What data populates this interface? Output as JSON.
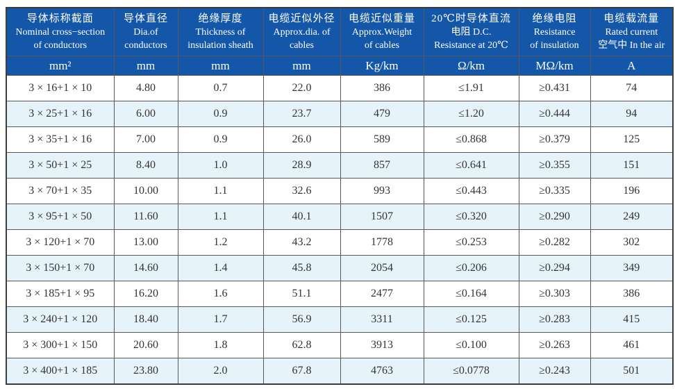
{
  "page": {
    "background": "#ffffff"
  },
  "table": {
    "colors": {
      "header_bg": "#1457A9",
      "header_text": "#ffffff",
      "row_bg": "#ffffff",
      "row_alt_bg": "#E7F3FB",
      "border": "#585858",
      "data_text": "#333333"
    },
    "columns": [
      {
        "lines": [
          "导体标称截面",
          "Nominal cross−section",
          "of conductors"
        ],
        "unit": "mm²"
      },
      {
        "lines": [
          "导体直径",
          "Dia.of",
          "conductors"
        ],
        "unit": "mm"
      },
      {
        "lines": [
          "绝缘厚度",
          "Thickness of",
          "insulation sheath"
        ],
        "unit": "mm"
      },
      {
        "lines": [
          "电缆近似外径",
          "Approx.dia. of",
          "cables"
        ],
        "unit": "mm"
      },
      {
        "lines": [
          "电缆近似重量",
          "Approx.Weight",
          "of cables"
        ],
        "unit": "Kg/km"
      },
      {
        "lines": [
          "20℃时导体直流",
          "电阻 D.C.",
          "Resistance at 20℃"
        ],
        "unit": "Ω/km"
      },
      {
        "lines": [
          "绝缘电阻",
          "Resistance",
          "of insulation"
        ],
        "unit": "MΩ/km"
      },
      {
        "lines": [
          "电缆载流量",
          "Rated current",
          "空气中 In the air"
        ],
        "unit": "A"
      }
    ],
    "rows": [
      [
        "3 × 16+1 × 10",
        "4.80",
        "0.7",
        "22.0",
        "386",
        "≤1.91",
        "≥0.431",
        "74"
      ],
      [
        "3 × 25+1 × 16",
        "6.00",
        "0.9",
        "23.7",
        "479",
        "≤1.20",
        "≥0.444",
        "94"
      ],
      [
        "3 × 35+1 × 16",
        "7.00",
        "0.9",
        "26.0",
        "589",
        "≤0.868",
        "≥0.379",
        "125"
      ],
      [
        "3 × 50+1 × 25",
        "8.40",
        "1.0",
        "28.9",
        "857",
        "≤0.641",
        "≥0.355",
        "151"
      ],
      [
        "3 × 70+1 × 35",
        "10.00",
        "1.1",
        "32.6",
        "993",
        "≤0.443",
        "≥0.335",
        "196"
      ],
      [
        "3 × 95+1 × 50",
        "11.60",
        "1.1",
        "40.1",
        "1507",
        "≤0.320",
        "≥0.290",
        "249"
      ],
      [
        "3 × 120+1 × 70",
        "13.00",
        "1.2",
        "43.2",
        "1778",
        "≤0.253",
        "≥0.282",
        "302"
      ],
      [
        "3 × 150+1 × 70",
        "14.60",
        "1.4",
        "45.8",
        "2054",
        "≤0.206",
        "≥0.294",
        "349"
      ],
      [
        "3 × 185+1 × 95",
        "16.20",
        "1.6",
        "51.1",
        "2477",
        "≤0.164",
        "≥0.303",
        "386"
      ],
      [
        "3 × 240+1 × 120",
        "18.40",
        "1.7",
        "56.9",
        "3311",
        "≤0.125",
        "≥0.283",
        "415"
      ],
      [
        "3 × 300+1 × 150",
        "20.60",
        "1.8",
        "62.8",
        "3913",
        "≤0.100",
        "≥0.263",
        "461"
      ],
      [
        "3 × 400+1 × 185",
        "23.80",
        "2.0",
        "67.8",
        "4763",
        "≤0.0778",
        "≥0.243",
        "501"
      ]
    ]
  }
}
